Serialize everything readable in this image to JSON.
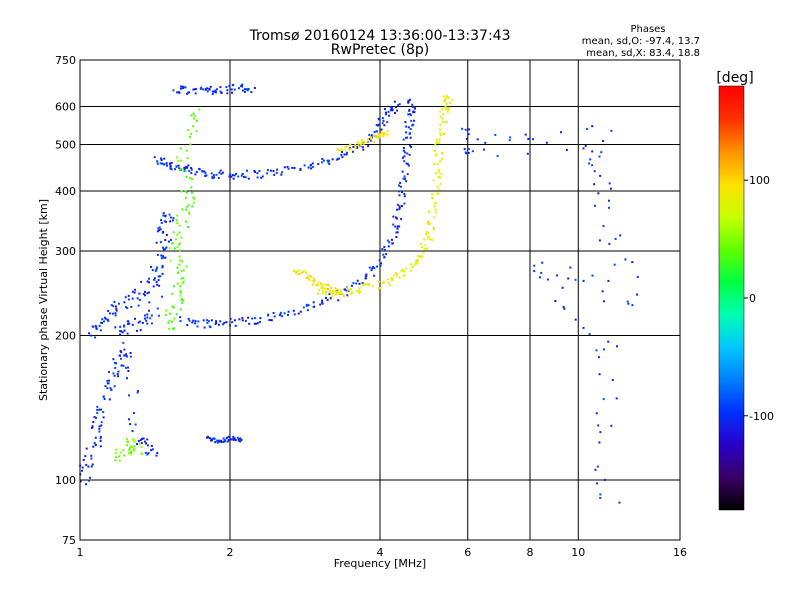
{
  "chart_data": {
    "type": "scatter",
    "title": "Tromsø 20160124 13:36:00-13:37:43",
    "subtitle": "RwPretec (8p)",
    "phases": {
      "heading": "Phases",
      "line_o": "mean, sd,O: -97.4, 13.7",
      "line_x": "mean, sd,X:  83.4, 18.8"
    },
    "xlabel": "Frequency [MHz]",
    "ylabel": "Stationary phase Virtual Height [km]",
    "x_scale": "log",
    "y_scale": "log",
    "xlim": [
      1,
      16
    ],
    "ylim": [
      75,
      750
    ],
    "x_ticks": [
      {
        "value": 1,
        "label": "1"
      },
      {
        "value": 2,
        "label": "2"
      },
      {
        "value": 4,
        "label": "4"
      },
      {
        "value": 6,
        "label": "6"
      },
      {
        "value": 8,
        "label": "8"
      },
      {
        "value": 10,
        "label": "10"
      },
      {
        "value": 16,
        "label": "16"
      }
    ],
    "x_grid": [
      1,
      2,
      4,
      6,
      8,
      10,
      16
    ],
    "y_ticks": [
      {
        "value": 75,
        "label": "75"
      },
      {
        "value": 100,
        "label": "100"
      },
      {
        "value": 200,
        "label": "200"
      },
      {
        "value": 300,
        "label": "300"
      },
      {
        "value": 400,
        "label": "400"
      },
      {
        "value": 500,
        "label": "500"
      },
      {
        "value": 600,
        "label": "600"
      },
      {
        "value": 750,
        "label": "750"
      }
    ],
    "y_grid": [
      100,
      200,
      300,
      400,
      500,
      600
    ],
    "colorbar": {
      "label": "[deg]",
      "range": [
        -180,
        180
      ],
      "ticks": [
        {
          "value": 100,
          "label": "100"
        },
        {
          "value": 0,
          "label": "0"
        },
        {
          "value": -100,
          "label": "-100"
        }
      ],
      "colors": [
        "#000000",
        "#3a0066",
        "#2a00c8",
        "#0030ff",
        "#0080ff",
        "#00c8ff",
        "#00ffb0",
        "#00ff40",
        "#60ff00",
        "#c8ff00",
        "#ffe000",
        "#ff9000",
        "#ff3000",
        "#ff0000"
      ]
    },
    "series": [
      {
        "trace": "upper-F-O",
        "phase": -100,
        "jitter": 0.02,
        "points": [
          [
            1.42,
            465
          ],
          [
            1.5,
            455
          ],
          [
            1.6,
            445
          ],
          [
            1.75,
            437
          ],
          [
            1.9,
            433
          ],
          [
            2.1,
            432
          ],
          [
            2.4,
            436
          ],
          [
            2.8,
            448
          ],
          [
            3.2,
            465
          ],
          [
            3.6,
            490
          ],
          [
            3.9,
            525
          ],
          [
            4.1,
            570
          ],
          [
            4.3,
            605
          ]
        ]
      },
      {
        "trace": "upper-F-X",
        "phase": 90,
        "jitter": 0.012,
        "points": [
          [
            3.3,
            485
          ],
          [
            3.6,
            500
          ],
          [
            3.9,
            515
          ],
          [
            4.1,
            530
          ]
        ]
      },
      {
        "trace": "F-O-lower-branch",
        "phase": -100,
        "jitter": 0.02,
        "points": [
          [
            1.6,
            215
          ],
          [
            1.8,
            212
          ],
          [
            2.0,
            213
          ],
          [
            2.3,
            216
          ],
          [
            2.6,
            222
          ],
          [
            3.0,
            232
          ],
          [
            3.4,
            247
          ],
          [
            3.8,
            268
          ],
          [
            4.1,
            295
          ],
          [
            4.3,
            335
          ],
          [
            4.4,
            380
          ],
          [
            4.5,
            440
          ],
          [
            4.55,
            510
          ],
          [
            4.6,
            570
          ],
          [
            4.65,
            610
          ]
        ]
      },
      {
        "trace": "F-X-branch",
        "phase": 85,
        "jitter": 0.02,
        "points": [
          [
            3.0,
            250
          ],
          [
            3.3,
            245
          ],
          [
            3.7,
            250
          ],
          [
            4.1,
            258
          ],
          [
            4.5,
            270
          ],
          [
            4.8,
            288
          ],
          [
            5.0,
            318
          ],
          [
            5.1,
            360
          ],
          [
            5.2,
            420
          ],
          [
            5.25,
            480
          ],
          [
            5.3,
            540
          ],
          [
            5.4,
            600
          ],
          [
            5.5,
            625
          ]
        ]
      },
      {
        "trace": "X-ring-left",
        "phase": 95,
        "jitter": 0.015,
        "points": [
          [
            2.7,
            275
          ],
          [
            2.9,
            262
          ],
          [
            3.1,
            252
          ],
          [
            3.3,
            245
          ]
        ]
      },
      {
        "trace": "cusp-top",
        "phase": -100,
        "jitter": 0.02,
        "points": [
          [
            1.55,
            650
          ],
          [
            1.7,
            648
          ],
          [
            1.85,
            650
          ],
          [
            2.0,
            652
          ],
          [
            2.2,
            655
          ]
        ]
      },
      {
        "trace": "E-spread-mix",
        "phase": -100,
        "jitter": 0.03,
        "points": [
          [
            1.05,
            200
          ],
          [
            1.12,
            215
          ],
          [
            1.2,
            230
          ],
          [
            1.3,
            240
          ],
          [
            1.4,
            260
          ],
          [
            1.45,
            290
          ],
          [
            1.48,
            330
          ],
          [
            1.5,
            360
          ],
          [
            1.4,
            220
          ],
          [
            1.3,
            210
          ],
          [
            1.2,
            205
          ]
        ]
      },
      {
        "trace": "E-spread-green",
        "phase": 40,
        "jitter": 0.035,
        "points": [
          [
            1.5,
            205
          ],
          [
            1.55,
            230
          ],
          [
            1.6,
            260
          ],
          [
            1.55,
            300
          ],
          [
            1.6,
            340
          ],
          [
            1.65,
            380
          ],
          [
            1.6,
            450
          ],
          [
            1.7,
            580
          ]
        ]
      },
      {
        "trace": "E-layer-low",
        "phase": -100,
        "jitter": 0.03,
        "points": [
          [
            1.0,
            100
          ],
          [
            1.05,
            110
          ],
          [
            1.08,
            125
          ],
          [
            1.1,
            140
          ],
          [
            1.15,
            160
          ],
          [
            1.2,
            175
          ],
          [
            1.25,
            190
          ],
          [
            1.3,
            120
          ],
          [
            1.4,
            115
          ]
        ]
      },
      {
        "trace": "E-layer-low-green",
        "phase": 50,
        "jitter": 0.03,
        "points": [
          [
            1.2,
            110
          ],
          [
            1.25,
            120
          ],
          [
            1.3,
            115
          ]
        ]
      },
      {
        "trace": "sporadic-low",
        "phase": -100,
        "jitter": 0.01,
        "points": [
          [
            1.8,
            122
          ],
          [
            1.9,
            120
          ],
          [
            2.0,
            122
          ],
          [
            2.1,
            121
          ]
        ]
      },
      {
        "trace": "noise",
        "phase": -100,
        "jitter": 0.06,
        "points": [
          [
            5.8,
            510
          ],
          [
            6.5,
            500
          ],
          [
            11.0,
            520
          ],
          [
            11.0,
            400
          ],
          [
            13.0,
            240
          ],
          [
            8.0,
            280
          ],
          [
            11.5,
            180
          ],
          [
            11.5,
            95
          ]
        ]
      }
    ]
  }
}
